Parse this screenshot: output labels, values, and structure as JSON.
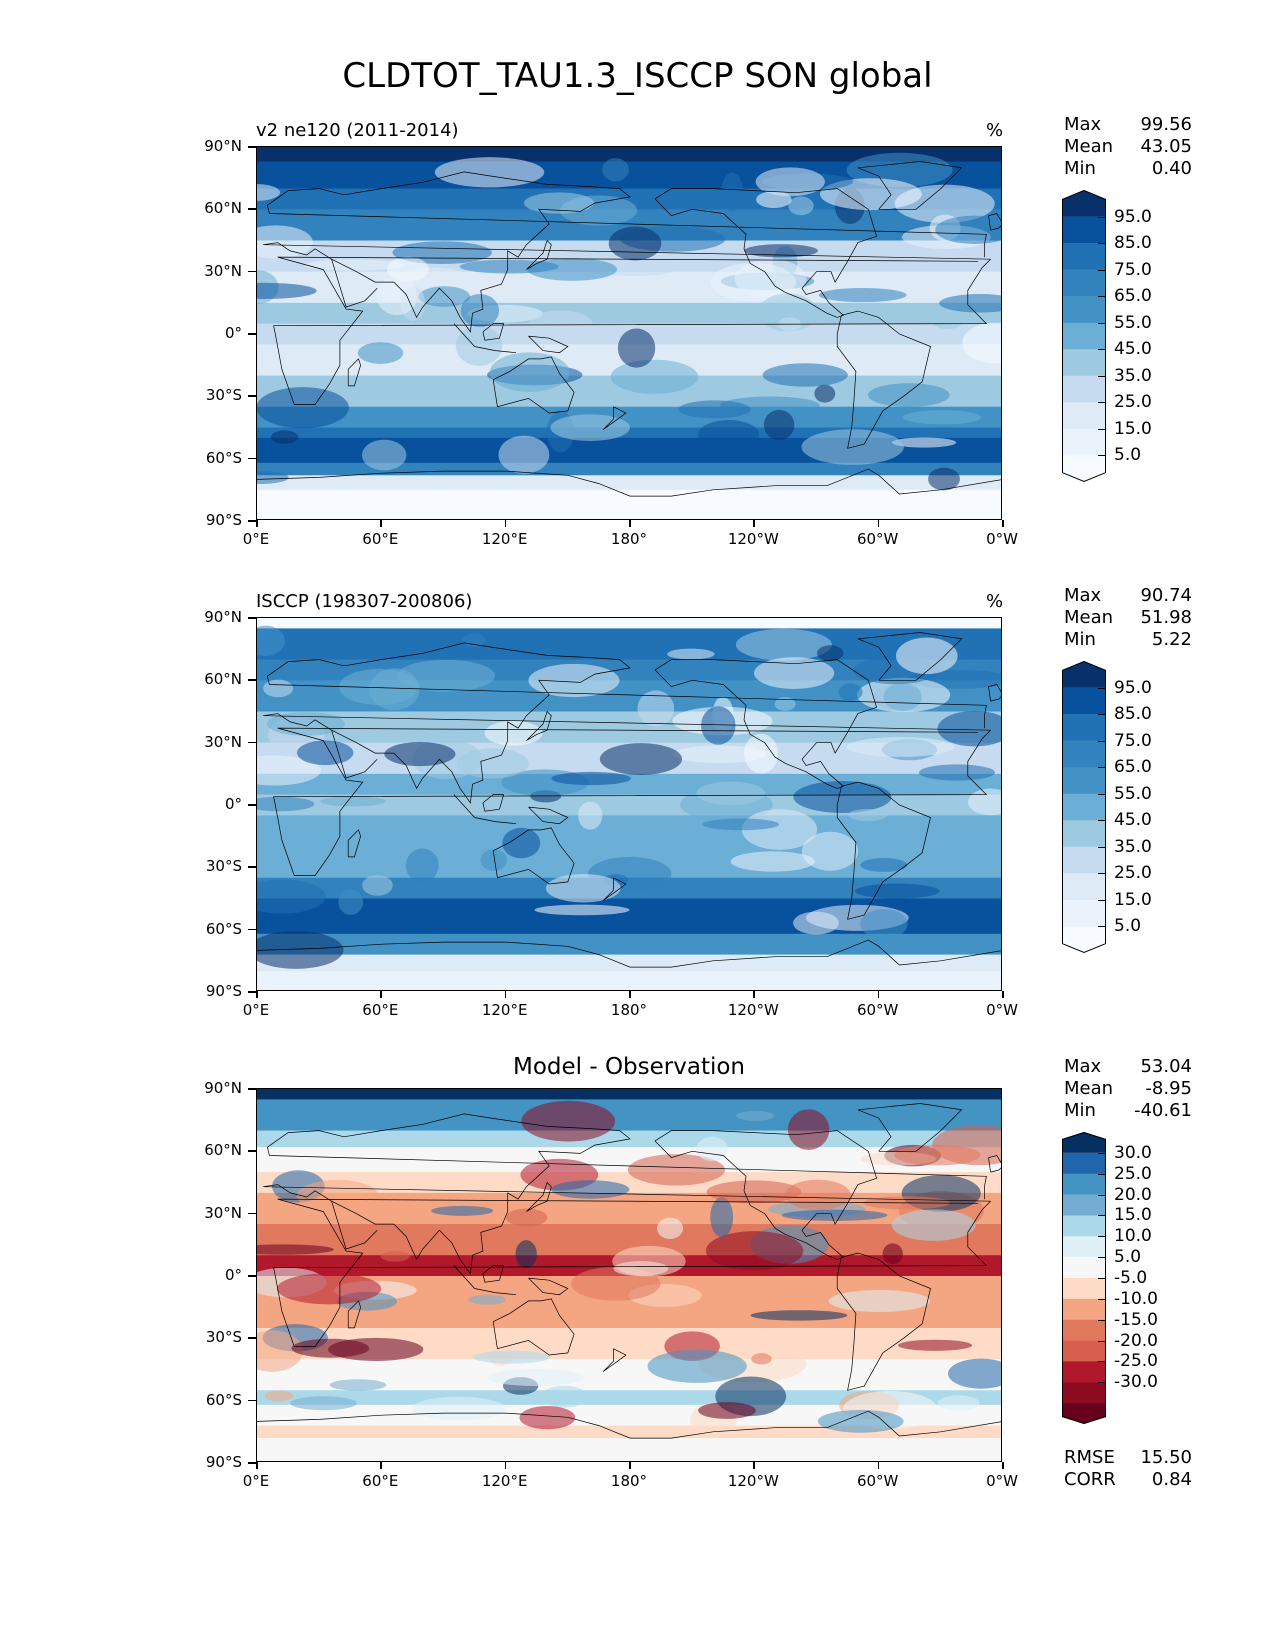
{
  "title": "CLDTOT_TAU1.3_ISCCP SON global",
  "xticks": [
    "0°E",
    "60°E",
    "120°E",
    "180°",
    "120°W",
    "60°W",
    "0°W"
  ],
  "yticks": [
    "90°N",
    "60°N",
    "30°N",
    "0°",
    "30°S",
    "60°S",
    "90°S"
  ],
  "panels": [
    {
      "title": "v2 ne120 (2011-2014)",
      "units": "%",
      "stats": {
        "max_label": "Max",
        "max": "99.56",
        "mean_label": "Mean",
        "mean": "43.05",
        "min_label": "Min",
        "min": "0.40"
      },
      "colorbar": {
        "labels": [
          "95.0",
          "85.0",
          "75.0",
          "65.0",
          "55.0",
          "45.0",
          "35.0",
          "25.0",
          "15.0",
          "5.0"
        ],
        "colors": [
          "#08306b",
          "#08519c",
          "#2171b5",
          "#3182bd",
          "#4292c6",
          "#6baed6",
          "#9ecae1",
          "#c6dbef",
          "#deebf7",
          "#eaf2fb",
          "#f7fbff"
        ]
      }
    },
    {
      "title": "ISCCP (198307-200806)",
      "units": "%",
      "stats": {
        "max_label": "Max",
        "max": "90.74",
        "mean_label": "Mean",
        "mean": "51.98",
        "min_label": "Min",
        "min": "5.22"
      },
      "colorbar": {
        "labels": [
          "95.0",
          "85.0",
          "75.0",
          "65.0",
          "55.0",
          "45.0",
          "35.0",
          "25.0",
          "15.0",
          "5.0"
        ],
        "colors": [
          "#08306b",
          "#08519c",
          "#2171b5",
          "#3182bd",
          "#4292c6",
          "#6baed6",
          "#9ecae1",
          "#c6dbef",
          "#deebf7",
          "#eaf2fb",
          "#f7fbff"
        ]
      }
    },
    {
      "title": "Model - Observation",
      "units": "",
      "stats": {
        "max_label": "Max",
        "max": "53.04",
        "mean_label": "Mean",
        "mean": "-8.95",
        "min_label": "Min",
        "min": "-40.61"
      },
      "colorbar": {
        "labels": [
          "30.0",
          "25.0",
          "20.0",
          "15.0",
          "10.0",
          "5.0",
          "-5.0",
          "-10.0",
          "-15.0",
          "-20.0",
          "-25.0",
          "-30.0"
        ],
        "colors": [
          "#053061",
          "#2166ac",
          "#4393c3",
          "#74add1",
          "#abd9e9",
          "#e0f0f7",
          "#f7f7f7",
          "#fddbc7",
          "#f4a582",
          "#e0795e",
          "#d6604d",
          "#b2182b",
          "#8e0c22",
          "#67001f"
        ]
      },
      "metrics": {
        "rmse_label": "RMSE",
        "rmse": "15.50",
        "corr_label": "CORR",
        "corr": "0.84"
      }
    }
  ]
}
